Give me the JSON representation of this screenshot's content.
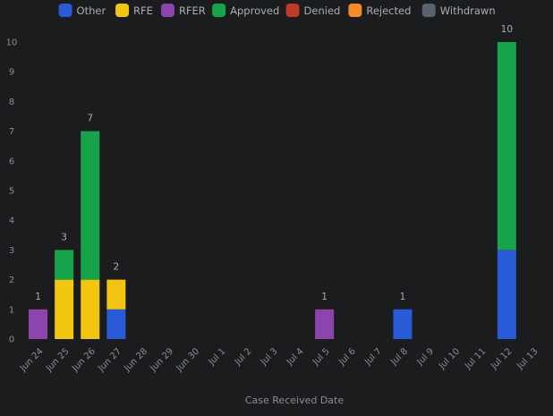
{
  "chart_data": {
    "type": "bar",
    "stacked": true,
    "xlabel": "Case Received Date",
    "ylabel": "",
    "ylim": [
      0,
      10
    ],
    "yticks": [
      "0",
      "1",
      "2",
      "3",
      "4",
      "5",
      "6",
      "7",
      "8",
      "9",
      "10"
    ],
    "grid": false,
    "legend_position": "top",
    "categories": [
      "Jun 24",
      "Jun 25",
      "Jun 26",
      "Jun 27",
      "Jun 28",
      "Jun 29",
      "Jun 30",
      "Jul 1",
      "Jul 2",
      "Jul 3",
      "Jul 4",
      "Jul 5",
      "Jul 6",
      "Jul 7",
      "Jul 8",
      "Jul 9",
      "Jul 10",
      "Jul 11",
      "Jul 12",
      "Jul 13"
    ],
    "series": [
      {
        "name": "Other",
        "color": "#2a5bd7",
        "values": [
          0,
          0,
          0,
          1,
          0,
          0,
          0,
          0,
          0,
          0,
          0,
          0,
          0,
          0,
          1,
          0,
          0,
          0,
          3,
          0
        ]
      },
      {
        "name": "RFE",
        "color": "#f2c511",
        "values": [
          0,
          2,
          2,
          1,
          0,
          0,
          0,
          0,
          0,
          0,
          0,
          0,
          0,
          0,
          0,
          0,
          0,
          0,
          0,
          0
        ]
      },
      {
        "name": "RFER",
        "color": "#8e44ad",
        "values": [
          1,
          0,
          0,
          0,
          0,
          0,
          0,
          0,
          0,
          0,
          0,
          1,
          0,
          0,
          0,
          0,
          0,
          0,
          0,
          0
        ]
      },
      {
        "name": "Approved",
        "color": "#16a34a",
        "values": [
          0,
          1,
          5,
          0,
          0,
          0,
          0,
          0,
          0,
          0,
          0,
          0,
          0,
          0,
          0,
          0,
          0,
          0,
          7,
          0
        ]
      },
      {
        "name": "Denied",
        "color": "#c0392b",
        "values": [
          0,
          0,
          0,
          0,
          0,
          0,
          0,
          0,
          0,
          0,
          0,
          0,
          0,
          0,
          0,
          0,
          0,
          0,
          0,
          0
        ]
      },
      {
        "name": "Rejected",
        "color": "#f28c28",
        "values": [
          0,
          0,
          0,
          0,
          0,
          0,
          0,
          0,
          0,
          0,
          0,
          0,
          0,
          0,
          0,
          0,
          0,
          0,
          0,
          0
        ]
      },
      {
        "name": "Withdrawn",
        "color": "#5a6270",
        "values": [
          0,
          0,
          0,
          0,
          0,
          0,
          0,
          0,
          0,
          0,
          0,
          0,
          0,
          0,
          0,
          0,
          0,
          0,
          0,
          0
        ]
      }
    ],
    "totals": [
      "1",
      "3",
      "7",
      "2",
      "",
      "",
      "",
      "",
      "",
      "",
      "",
      "1",
      "",
      "",
      "1",
      "",
      "",
      "",
      "10",
      ""
    ]
  }
}
